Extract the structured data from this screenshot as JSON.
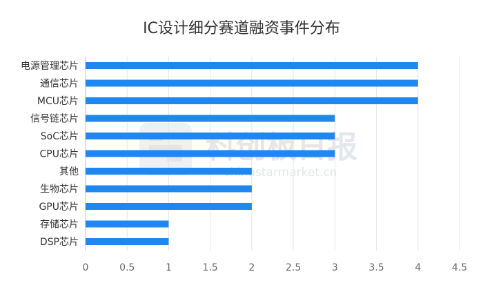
{
  "chart_data": {
    "type": "bar",
    "orientation": "horizontal",
    "title": "IC设计细分赛道融资事件分布",
    "categories": [
      "电源管理芯片",
      "通信芯片",
      "MCU芯片",
      "信号链芯片",
      "SoC芯片",
      "CPU芯片",
      "其他",
      "生物芯片",
      "GPU芯片",
      "存储芯片",
      "DSP芯片"
    ],
    "values": [
      4,
      4,
      4,
      3,
      3,
      3,
      2,
      2,
      2,
      1,
      1
    ],
    "xticks": [
      "0",
      "0.5",
      "1",
      "1.5",
      "2",
      "2.5",
      "3",
      "3.5",
      "4",
      "4.5"
    ],
    "xlim": [
      0,
      4.5
    ],
    "grid": true,
    "bar_color": "#1e88f0",
    "xlabel": "",
    "ylabel": ""
  },
  "watermark": {
    "name": "科创板日报",
    "url": "chinastarmarket.cn"
  }
}
